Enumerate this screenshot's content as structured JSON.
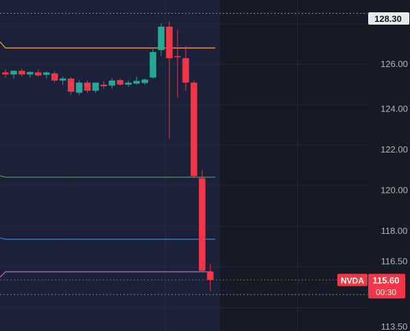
{
  "chart_data": {
    "type": "candlestick",
    "symbol": "NVDA",
    "ylim": [
      113.5,
      128.6
    ],
    "yticks": [
      {
        "value": 128.3,
        "label": "128.30",
        "kind": "highlight"
      },
      {
        "value": 126.0,
        "label": "126.00"
      },
      {
        "value": 124.0,
        "label": "124.00"
      },
      {
        "value": 122.0,
        "label": "122.00"
      },
      {
        "value": 120.0,
        "label": "120.00"
      },
      {
        "value": 118.0,
        "label": "118.00"
      },
      {
        "value": 116.5,
        "label": "116.50"
      },
      {
        "value": 113.5,
        "label": "113.50"
      }
    ],
    "last_price": {
      "value": 115.6,
      "label": "115.60",
      "countdown": "00:30",
      "symbol_label": "NVDA"
    },
    "high_marker": 128.3,
    "low_marker": 115.05,
    "levels": [
      {
        "name": "orange",
        "value": 127.0,
        "color": "#f59b3b"
      },
      {
        "name": "green",
        "value": 120.65,
        "color": "#3f9e58"
      },
      {
        "name": "blue",
        "value": 117.6,
        "color": "#2f7fdc"
      },
      {
        "name": "purple",
        "value": 116.0,
        "color": "#b363b8"
      }
    ],
    "candles": [
      {
        "o": 125.8,
        "h": 125.95,
        "l": 125.55,
        "c": 125.7
      },
      {
        "o": 125.7,
        "h": 125.9,
        "l": 125.5,
        "c": 125.88
      },
      {
        "o": 125.88,
        "h": 126.0,
        "l": 125.6,
        "c": 125.7
      },
      {
        "o": 125.7,
        "h": 125.85,
        "l": 125.55,
        "c": 125.82
      },
      {
        "o": 125.8,
        "h": 125.95,
        "l": 125.6,
        "c": 125.65
      },
      {
        "o": 125.68,
        "h": 125.85,
        "l": 125.5,
        "c": 125.8
      },
      {
        "o": 125.75,
        "h": 125.85,
        "l": 125.3,
        "c": 125.4
      },
      {
        "o": 125.4,
        "h": 125.6,
        "l": 125.2,
        "c": 125.5
      },
      {
        "o": 125.5,
        "h": 125.55,
        "l": 124.7,
        "c": 124.85
      },
      {
        "o": 124.8,
        "h": 125.4,
        "l": 124.7,
        "c": 125.3
      },
      {
        "o": 125.3,
        "h": 125.4,
        "l": 124.8,
        "c": 124.9
      },
      {
        "o": 124.9,
        "h": 125.3,
        "l": 124.8,
        "c": 125.3
      },
      {
        "o": 125.2,
        "h": 125.35,
        "l": 125.0,
        "c": 125.12
      },
      {
        "o": 125.15,
        "h": 125.5,
        "l": 125.0,
        "c": 125.4
      },
      {
        "o": 125.42,
        "h": 125.48,
        "l": 125.15,
        "c": 125.2
      },
      {
        "o": 125.2,
        "h": 125.4,
        "l": 125.1,
        "c": 125.3
      },
      {
        "o": 125.25,
        "h": 125.6,
        "l": 125.2,
        "c": 125.38
      },
      {
        "o": 125.28,
        "h": 125.5,
        "l": 125.2,
        "c": 125.45
      },
      {
        "o": 125.55,
        "h": 126.95,
        "l": 125.5,
        "c": 126.8
      },
      {
        "o": 126.9,
        "h": 128.2,
        "l": 126.6,
        "c": 128.05
      },
      {
        "o": 128.05,
        "h": 128.3,
        "l": 122.55,
        "c": 126.5
      },
      {
        "o": 126.6,
        "h": 127.9,
        "l": 124.55,
        "c": 126.55
      },
      {
        "o": 126.5,
        "h": 127.1,
        "l": 124.9,
        "c": 125.3
      },
      {
        "o": 125.3,
        "h": 125.4,
        "l": 120.6,
        "c": 120.7
      },
      {
        "o": 120.6,
        "h": 121.0,
        "l": 116.0,
        "c": 116.05
      },
      {
        "o": 116.0,
        "h": 116.4,
        "l": 115.05,
        "c": 115.6
      }
    ]
  }
}
